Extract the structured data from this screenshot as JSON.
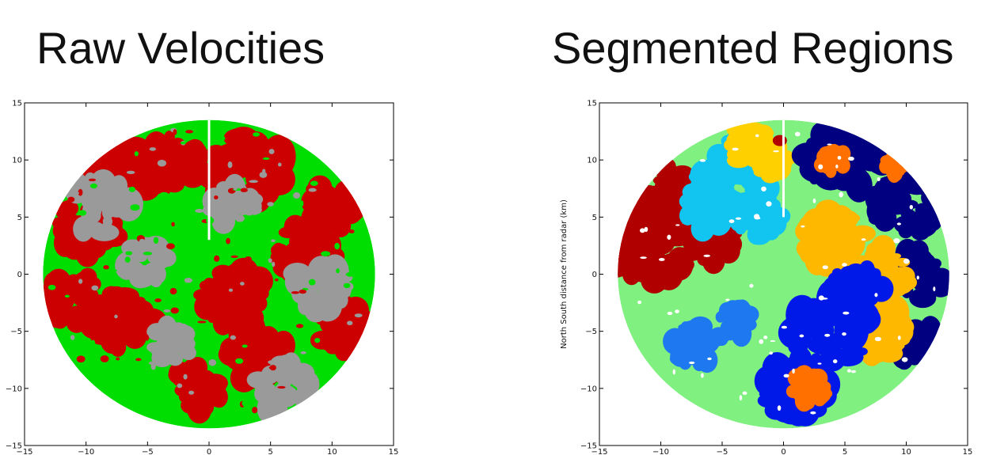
{
  "panels": [
    {
      "title": "Raw Velocities",
      "chart_data": {
        "type": "heatmap",
        "title": "Raw Velocities",
        "xlabel": "",
        "ylabel": "",
        "xlim": [
          -15,
          15
        ],
        "ylim": [
          -15,
          15
        ],
        "xticks": [
          "−15",
          "−10",
          "−5",
          "0",
          "5",
          "10",
          "15"
        ],
        "yticks": [
          "−15",
          "−10",
          "−5",
          "0",
          "5",
          "10",
          "15"
        ],
        "grid": false,
        "radar_range_km": 13.5,
        "colors": {
          "negative": "#00dd00",
          "near_zero": "#9a9a9a",
          "positive": "#cc0000",
          "gap": "#ffffff"
        }
      }
    },
    {
      "title": "Segmented Regions",
      "chart_data": {
        "type": "heatmap",
        "title": "Segmented Regions",
        "xlabel": "",
        "ylabel": "North South distance from radar (km)",
        "xlim": [
          -15,
          15
        ],
        "ylim": [
          -15,
          15
        ],
        "xticks": [
          "−15",
          "−10",
          "−5",
          "0",
          "5",
          "10",
          "15"
        ],
        "yticks": [
          "−15",
          "−10",
          "−5",
          "0",
          "5",
          "10",
          "15"
        ],
        "grid": false,
        "radar_range_km": 13.5,
        "colors": {
          "dark-red": "#b00000",
          "light-blue": "#12c4f0",
          "yellow": "#ffd000",
          "navy": "#000080",
          "light-green": "#80f080",
          "dark-orange": "#ff7000",
          "amber": "#ffb800",
          "blue": "#0018e8",
          "mid-blue": "#1e78f0",
          "gap": "#ffffff"
        }
      }
    }
  ]
}
